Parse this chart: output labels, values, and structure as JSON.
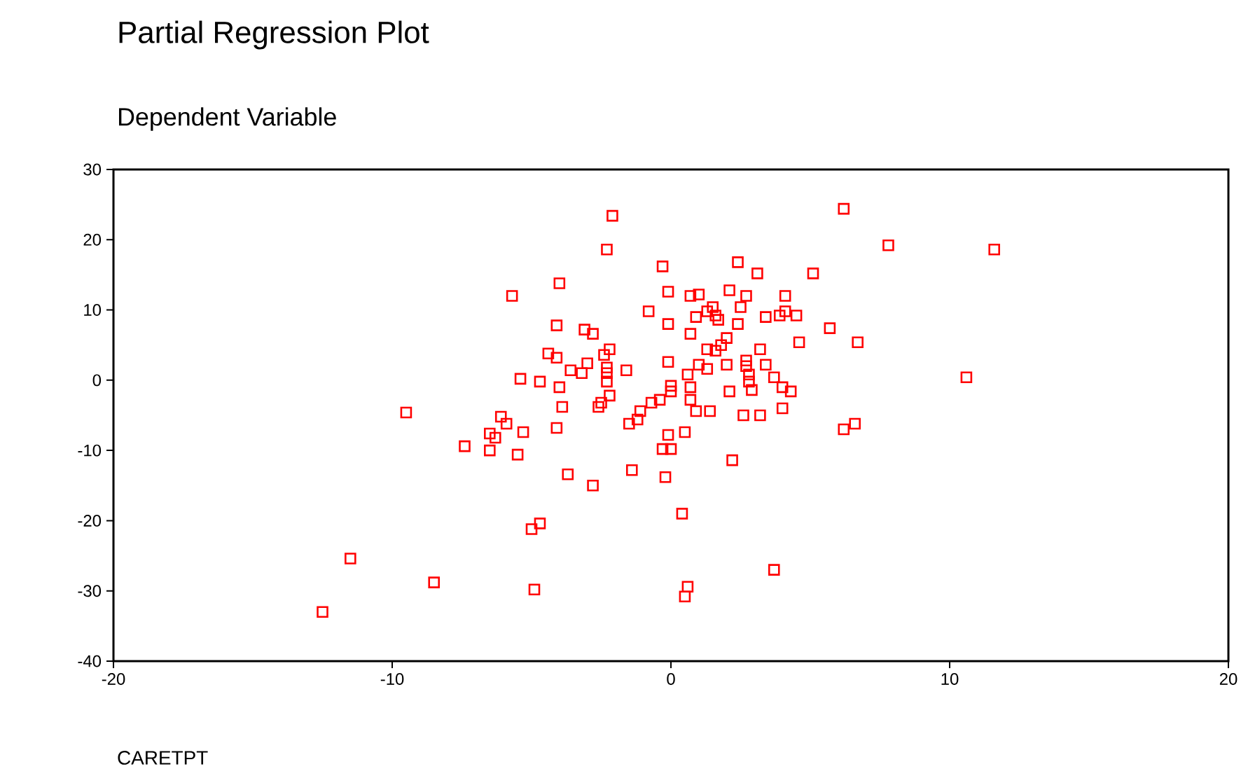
{
  "chart_data": {
    "type": "scatter",
    "title": "Partial Regression Plot",
    "subtitle": "Dependent Variable",
    "xlabel": "CARETPT",
    "xlim": [
      -20,
      20
    ],
    "ylim": [
      -40,
      30
    ],
    "xticks": [
      -20,
      -10,
      0,
      10,
      20
    ],
    "yticks": [
      -40,
      -30,
      -20,
      -10,
      0,
      10,
      20,
      30
    ],
    "marker": "square",
    "grid": false,
    "series": [
      {
        "color": "#ff0000",
        "x": [
          -2.1,
          -2.3,
          -4.0,
          -5.7,
          -4.1,
          -3.1,
          -2.8,
          -2.2,
          -4.4,
          -4.1,
          -2.4,
          -3.0,
          -3.6,
          -3.2,
          -2.3,
          -2.3,
          -1.6,
          -5.4,
          -4.7,
          -4.0,
          -2.3,
          -2.2,
          -3.9,
          -2.5,
          -2.6,
          -1.1,
          -1.2,
          -1.5,
          -6.1,
          -5.9,
          -9.5,
          -5.3,
          -4.1,
          -6.5,
          -6.3,
          -7.4,
          -6.5,
          -5.5,
          -3.7,
          -2.8,
          -1.4,
          -4.7,
          -5.0,
          -11.5,
          -8.5,
          -4.9,
          -12.5,
          -0.8,
          -0.7,
          6.2,
          7.8,
          11.6,
          -0.3,
          2.4,
          3.1,
          5.1,
          -0.1,
          0.7,
          1.0,
          2.1,
          2.7,
          4.1,
          1.5,
          2.5,
          1.3,
          0.9,
          1.6,
          1.7,
          3.4,
          3.9,
          4.1,
          4.5,
          2.4,
          -0.1,
          5.7,
          0.7,
          2.0,
          4.6,
          6.7,
          1.8,
          1.3,
          1.6,
          3.2,
          -0.1,
          1.0,
          1.3,
          2.0,
          2.7,
          2.7,
          3.4,
          0.6,
          2.8,
          3.7,
          10.6,
          0.0,
          0.0,
          0.7,
          2.1,
          2.8,
          2.9,
          4.0,
          4.3,
          -0.4,
          0.7,
          0.9,
          1.4,
          2.6,
          3.2,
          4.0,
          6.6,
          6.2,
          -0.1,
          0.5,
          -0.3,
          0.0,
          2.2,
          -0.2,
          0.4,
          3.7,
          0.6,
          0.5
        ],
        "values": [
          23.4,
          18.6,
          13.8,
          12.0,
          7.8,
          7.2,
          6.6,
          4.4,
          3.8,
          3.2,
          3.6,
          2.4,
          1.4,
          1.0,
          1.8,
          1.0,
          1.4,
          0.2,
          -0.2,
          -1.0,
          -0.2,
          -2.2,
          -3.8,
          -3.2,
          -3.8,
          -4.4,
          -5.6,
          -6.2,
          -5.2,
          -6.2,
          -4.6,
          -7.4,
          -6.8,
          -7.6,
          -8.2,
          -9.4,
          -10.0,
          -10.6,
          -13.4,
          -15.0,
          -12.8,
          -20.4,
          -21.2,
          -25.4,
          -28.8,
          -29.8,
          -33.0,
          9.8,
          -3.2,
          24.4,
          19.2,
          18.6,
          16.2,
          16.8,
          15.2,
          15.2,
          12.6,
          12.0,
          12.2,
          12.8,
          12.0,
          12.0,
          10.4,
          10.4,
          9.8,
          9.0,
          9.2,
          8.6,
          9.0,
          9.2,
          9.8,
          9.2,
          8.0,
          8.0,
          7.4,
          6.6,
          6.0,
          5.4,
          5.4,
          5.0,
          4.4,
          4.2,
          4.4,
          2.6,
          2.2,
          1.6,
          2.2,
          2.8,
          2.0,
          2.2,
          0.8,
          0.8,
          0.4,
          0.4,
          -0.8,
          -1.6,
          -1.0,
          -1.6,
          -0.2,
          -1.4,
          -1.0,
          -1.6,
          -2.8,
          -2.8,
          -4.4,
          -4.4,
          -5.0,
          -5.0,
          -4.0,
          -6.2,
          -7.0,
          -7.8,
          -7.4,
          -9.8,
          -9.8,
          -11.4,
          -13.8,
          -19.0,
          -27.0,
          -29.4,
          -30.8
        ]
      }
    ]
  }
}
